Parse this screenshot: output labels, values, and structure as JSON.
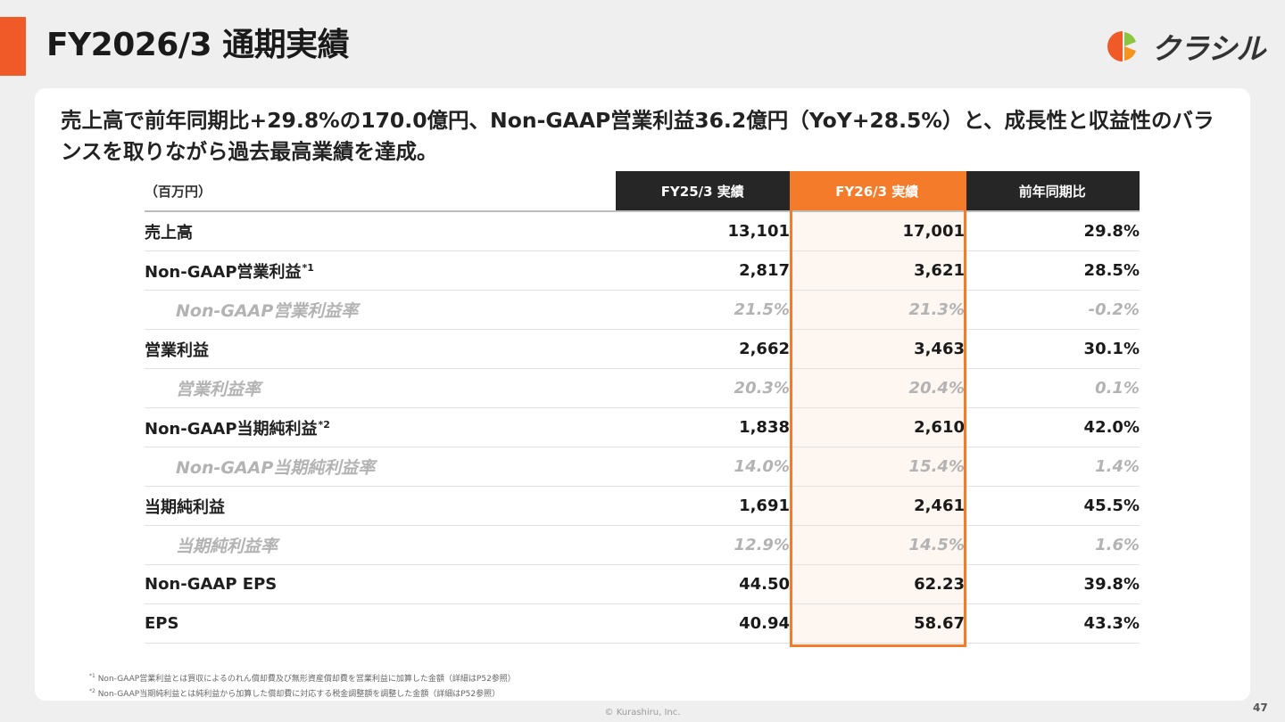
{
  "slide": {
    "title": "FY2026/3 通期実績",
    "logo_text": "クラシル",
    "headline": "売上高で前年同期比+29.8%の170.0億円、Non-GAAP営業利益36.2億円（YoY+28.5%）と、成長性と収益性のバランスを取りながら過去最高業績を達成。",
    "page_number": "47",
    "copyright": "© Kurashiru, Inc.",
    "brand_colors": {
      "accent": "#f05a28",
      "highlight": "#f47b2a",
      "header_dark": "#262626"
    }
  },
  "table": {
    "unit": "（百万円）",
    "headers": [
      "FY25/3 実績",
      "FY26/3 実績",
      "前年同期比"
    ],
    "rows": [
      {
        "label": "売上高",
        "fn": "",
        "fy25": "13,101",
        "fy26": "17,001",
        "yoy": "29.8%"
      },
      {
        "label": "Non-GAAP営業利益",
        "fn": "*1",
        "fy25": "2,817",
        "fy26": "3,621",
        "yoy": "28.5%"
      },
      {
        "label": "Non-GAAP営業利益率",
        "fn": "",
        "fy25": "21.5%",
        "fy26": "21.3%",
        "yoy": "-0.2%"
      },
      {
        "label": "営業利益",
        "fn": "",
        "fy25": "2,662",
        "fy26": "3,463",
        "yoy": "30.1%"
      },
      {
        "label": "営業利益率",
        "fn": "",
        "fy25": "20.3%",
        "fy26": "20.4%",
        "yoy": "0.1%"
      },
      {
        "label": "Non-GAAP当期純利益",
        "fn": "*2",
        "fy25": "1,838",
        "fy26": "2,610",
        "yoy": "42.0%"
      },
      {
        "label": "Non-GAAP当期純利益率",
        "fn": "",
        "fy25": "14.0%",
        "fy26": "15.4%",
        "yoy": "1.4%"
      },
      {
        "label": "当期純利益",
        "fn": "",
        "fy25": "1,691",
        "fy26": "2,461",
        "yoy": "45.5%"
      },
      {
        "label": "当期純利益率",
        "fn": "",
        "fy25": "12.9%",
        "fy26": "14.5%",
        "yoy": "1.6%"
      },
      {
        "label": "Non-GAAP EPS",
        "fn": "",
        "fy25": "44.50",
        "fy26": "62.23",
        "yoy": "39.8%"
      },
      {
        "label": "EPS",
        "fn": "",
        "fy25": "40.94",
        "fy26": "58.67",
        "yoy": "43.3%"
      }
    ]
  },
  "footnotes": [
    {
      "mark": "*1",
      "text": "Non-GAAP営業利益とは買収によるのれん償却費及び無形資産償却費を営業利益に加算した金額（詳細はP52参照）"
    },
    {
      "mark": "*2",
      "text": "Non-GAAP当期純利益とは純利益から加算した償却費に対応する税金調整額を調整した金額（詳細はP52参照）"
    }
  ]
}
